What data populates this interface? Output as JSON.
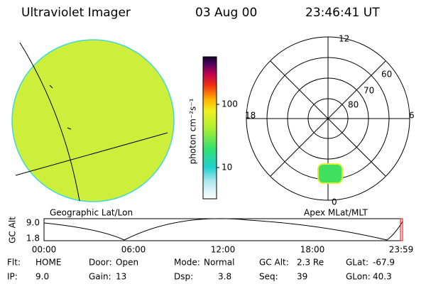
{
  "header": {
    "title": "Ultraviolet Imager",
    "date": "03 Aug 00",
    "time": "23:46:41 UT"
  },
  "colorbar": {
    "label": "photon cm⁻²s⁻¹",
    "ticks": [
      "100",
      "10"
    ]
  },
  "left_panel": {
    "caption": "Geographic Lat/Lon"
  },
  "right_panel": {
    "caption": "Apex MLat/MLT",
    "hour_labels": [
      "12",
      "18",
      "6",
      "0"
    ],
    "lat_labels": [
      "60",
      "70",
      "80"
    ]
  },
  "timeline": {
    "axis_label": "GC Alt",
    "y_labels": [
      "9.0",
      "1.8"
    ],
    "x_labels": [
      "00:00",
      "06:00",
      "12:00",
      "18:00",
      "23:59"
    ]
  },
  "status": {
    "rows": [
      [
        [
          "Flt:",
          "HOME"
        ],
        [
          "Door:",
          "Open"
        ],
        [
          "Mode:",
          "Normal"
        ],
        [
          "GC Alt:",
          "2.3 Re"
        ],
        [
          "GLat:",
          "-67.9"
        ]
      ],
      [
        [
          "IP:",
          "9.0"
        ],
        [
          "Gain:",
          "13"
        ],
        [
          "Dsp:",
          "3.8"
        ],
        [
          "Seq:",
          "39"
        ],
        [
          "GLon:",
          "40.3"
        ]
      ]
    ]
  }
}
